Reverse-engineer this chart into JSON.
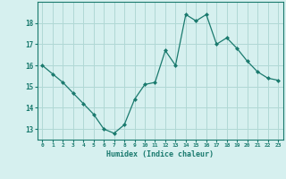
{
  "xlabel": "Humidex (Indice chaleur)",
  "ylabel": "",
  "x_values": [
    0,
    1,
    2,
    3,
    4,
    5,
    6,
    7,
    8,
    9,
    10,
    11,
    12,
    13,
    14,
    15,
    16,
    17,
    18,
    19,
    20,
    21,
    22,
    23
  ],
  "y_values": [
    16.0,
    15.6,
    15.2,
    14.7,
    14.2,
    13.7,
    13.0,
    12.8,
    13.2,
    14.4,
    15.1,
    15.2,
    16.7,
    16.0,
    18.4,
    18.1,
    18.4,
    17.0,
    17.3,
    16.8,
    16.2,
    15.7,
    15.4,
    15.3
  ],
  "line_color": "#1a7a6e",
  "marker_color": "#1a7a6e",
  "bg_color": "#d6f0ef",
  "grid_color": "#b0d8d5",
  "tick_color": "#1a7a6e",
  "ylim": [
    12.5,
    19.0
  ],
  "yticks": [
    13,
    14,
    15,
    16,
    17,
    18
  ],
  "xticks": [
    0,
    1,
    2,
    3,
    4,
    5,
    6,
    7,
    8,
    9,
    10,
    11,
    12,
    13,
    14,
    15,
    16,
    17,
    18,
    19,
    20,
    21,
    22,
    23
  ]
}
